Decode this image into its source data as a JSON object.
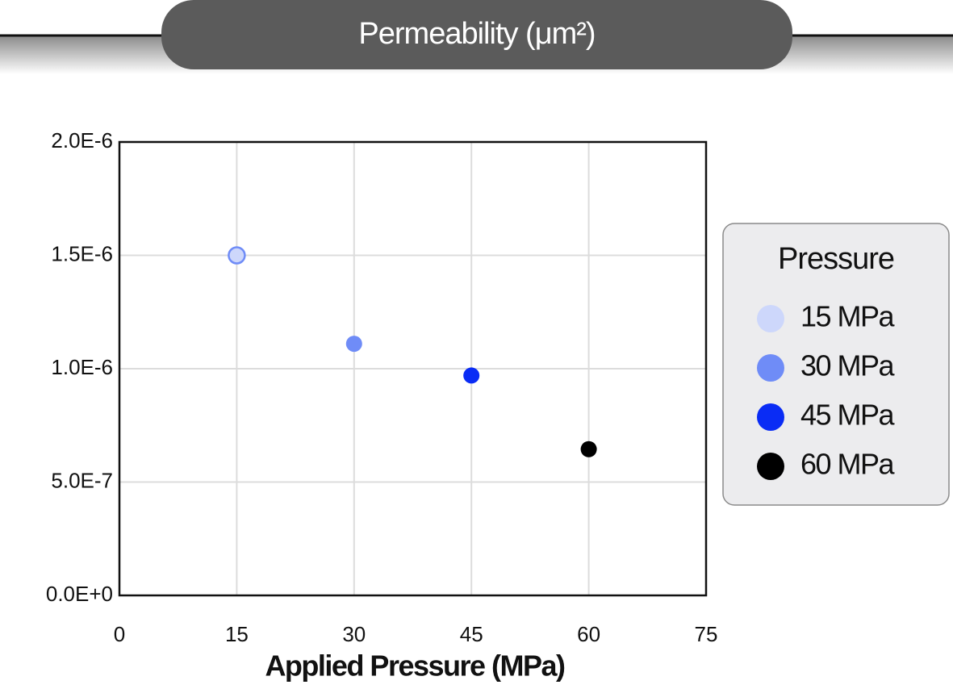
{
  "chart_data": {
    "type": "scatter",
    "title": "Permeability (μm²)",
    "xlabel": "Applied Pressure (MPa)",
    "xlim": [
      0,
      75
    ],
    "xticks": [
      0,
      15,
      30,
      45,
      60,
      75
    ],
    "ylim": [
      0,
      2e-06
    ],
    "yticks": [
      {
        "value": 0,
        "label": "0.0E+0"
      },
      {
        "value": 5e-07,
        "label": "5.0E-7"
      },
      {
        "value": 1e-06,
        "label": "1.0E-6"
      },
      {
        "value": 1.5e-06,
        "label": "1.5E-6"
      },
      {
        "value": 2e-06,
        "label": "2.0E-6"
      }
    ],
    "grid": true,
    "legend_title": "Pressure",
    "legend_position": "right",
    "series": [
      {
        "name": "15 MPa",
        "color": "#cdd7fb",
        "edgecolor": "#6f8cf7",
        "x": [
          15
        ],
        "values": [
          1.5e-06
        ]
      },
      {
        "name": "30 MPa",
        "color": "#6f8cf7",
        "x": [
          30
        ],
        "values": [
          1.11e-06
        ]
      },
      {
        "name": "45 MPa",
        "color": "#0a2cf5",
        "x": [
          45
        ],
        "values": [
          9.7e-07
        ]
      },
      {
        "name": "60 MPa",
        "color": "#000000",
        "x": [
          60
        ],
        "values": [
          6.45e-07
        ]
      }
    ]
  }
}
